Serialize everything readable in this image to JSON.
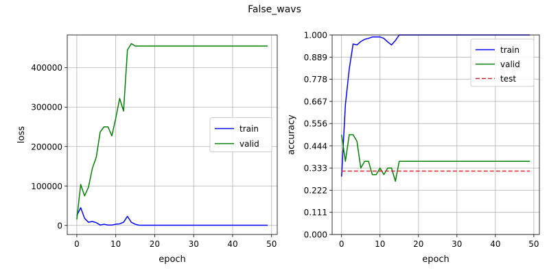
{
  "figure": {
    "suptitle": "False_wavs"
  },
  "chart_data": [
    {
      "type": "line",
      "title": "",
      "xlabel": "epoch",
      "ylabel": "loss",
      "xlim": [
        -2.45,
        51.45
      ],
      "ylim": [
        -23000,
        483000
      ],
      "xticks": [
        0,
        10,
        20,
        30,
        40,
        50
      ],
      "xtick_labels": [
        "0",
        "10",
        "20",
        "30",
        "40",
        "50"
      ],
      "yticks": [
        0,
        100000,
        200000,
        300000,
        400000
      ],
      "ytick_labels": [
        "0",
        "100000",
        "200000",
        "300000",
        "400000"
      ],
      "grid": true,
      "legend": {
        "placement": "center-right",
        "labels": [
          "train",
          "valid"
        ]
      },
      "x": [
        0,
        1,
        2,
        3,
        4,
        5,
        6,
        7,
        8,
        9,
        10,
        11,
        12,
        13,
        14,
        15,
        16,
        17,
        18,
        19,
        20,
        21,
        22,
        23,
        24,
        25,
        26,
        27,
        28,
        29,
        30,
        31,
        32,
        33,
        34,
        35,
        36,
        37,
        38,
        39,
        40,
        41,
        42,
        43,
        44,
        45,
        46,
        47,
        48,
        49
      ],
      "series": [
        {
          "name": "train",
          "color": "#0000ff",
          "dash": "",
          "values": [
            25000,
            45000,
            18000,
            8000,
            10000,
            7000,
            1000,
            3000,
            1000,
            1000,
            3000,
            4000,
            8000,
            23000,
            8000,
            3000,
            500,
            500,
            500,
            500,
            500,
            500,
            500,
            500,
            500,
            500,
            500,
            500,
            500,
            500,
            500,
            500,
            500,
            500,
            500,
            500,
            500,
            500,
            500,
            500,
            500,
            500,
            500,
            500,
            500,
            500,
            500,
            500,
            500,
            500
          ]
        },
        {
          "name": "valid",
          "color": "#008000",
          "dash": "",
          "values": [
            15000,
            104000,
            75000,
            97000,
            145000,
            173000,
            237000,
            250000,
            250000,
            227000,
            272000,
            322000,
            290000,
            445000,
            461000,
            455000,
            455000,
            455000,
            455000,
            455000,
            455000,
            455000,
            455000,
            455000,
            455000,
            455000,
            455000,
            455000,
            455000,
            455000,
            455000,
            455000,
            455000,
            455000,
            455000,
            455000,
            455000,
            455000,
            455000,
            455000,
            455000,
            455000,
            455000,
            455000,
            455000,
            455000,
            455000,
            455000,
            455000,
            455000
          ]
        }
      ]
    },
    {
      "type": "line",
      "title": "",
      "xlabel": "epoch",
      "ylabel": "accuracy",
      "xlim": [
        -2.45,
        51.45
      ],
      "ylim": [
        0,
        1
      ],
      "xticks": [
        0,
        10,
        20,
        30,
        40,
        50
      ],
      "xtick_labels": [
        "0",
        "10",
        "20",
        "30",
        "40",
        "50"
      ],
      "yticks": [
        0,
        0.111,
        0.222,
        0.333,
        0.444,
        0.556,
        0.667,
        0.778,
        0.889,
        1.0
      ],
      "ytick_labels": [
        "0.000",
        "0.111",
        "0.222",
        "0.333",
        "0.444",
        "0.556",
        "0.667",
        "0.778",
        "0.889",
        "1.000"
      ],
      "grid": true,
      "legend": {
        "placement": "top-right",
        "labels": [
          "train",
          "valid",
          "test"
        ]
      },
      "x": [
        0,
        1,
        2,
        3,
        4,
        5,
        6,
        7,
        8,
        9,
        10,
        11,
        12,
        13,
        14,
        15,
        16,
        17,
        18,
        19,
        20,
        21,
        22,
        23,
        24,
        25,
        26,
        27,
        28,
        29,
        30,
        31,
        32,
        33,
        34,
        35,
        36,
        37,
        38,
        39,
        40,
        41,
        42,
        43,
        44,
        45,
        46,
        47,
        48,
        49
      ],
      "series": [
        {
          "name": "train",
          "color": "#0000ff",
          "dash": "",
          "values": [
            0.29,
            0.65,
            0.83,
            0.955,
            0.95,
            0.967,
            0.978,
            0.983,
            0.99,
            0.99,
            0.99,
            0.983,
            0.965,
            0.95,
            0.972,
            1.0,
            1.0,
            1.0,
            1.0,
            1.0,
            1.0,
            1.0,
            1.0,
            1.0,
            1.0,
            1.0,
            1.0,
            1.0,
            1.0,
            1.0,
            1.0,
            1.0,
            1.0,
            1.0,
            1.0,
            1.0,
            1.0,
            1.0,
            1.0,
            1.0,
            1.0,
            1.0,
            1.0,
            1.0,
            1.0,
            1.0,
            1.0,
            1.0,
            1.0,
            1.0
          ]
        },
        {
          "name": "valid",
          "color": "#008000",
          "dash": "",
          "values": [
            0.5,
            0.367,
            0.5,
            0.5,
            0.467,
            0.333,
            0.367,
            0.367,
            0.3,
            0.3,
            0.333,
            0.3,
            0.333,
            0.333,
            0.267,
            0.367,
            0.367,
            0.367,
            0.367,
            0.367,
            0.367,
            0.367,
            0.367,
            0.367,
            0.367,
            0.367,
            0.367,
            0.367,
            0.367,
            0.367,
            0.367,
            0.367,
            0.367,
            0.367,
            0.367,
            0.367,
            0.367,
            0.367,
            0.367,
            0.367,
            0.367,
            0.367,
            0.367,
            0.367,
            0.367,
            0.367,
            0.367,
            0.367,
            0.367,
            0.367
          ]
        },
        {
          "name": "test",
          "color": "#d62728",
          "dash": "6,3",
          "values": [
            0.318,
            0.318,
            0.318,
            0.318,
            0.318,
            0.318,
            0.318,
            0.318,
            0.318,
            0.318,
            0.318,
            0.318,
            0.318,
            0.318,
            0.318,
            0.318,
            0.318,
            0.318,
            0.318,
            0.318,
            0.318,
            0.318,
            0.318,
            0.318,
            0.318,
            0.318,
            0.318,
            0.318,
            0.318,
            0.318,
            0.318,
            0.318,
            0.318,
            0.318,
            0.318,
            0.318,
            0.318,
            0.318,
            0.318,
            0.318,
            0.318,
            0.318,
            0.318,
            0.318,
            0.318,
            0.318,
            0.318,
            0.318,
            0.318,
            0.318
          ]
        }
      ]
    }
  ]
}
